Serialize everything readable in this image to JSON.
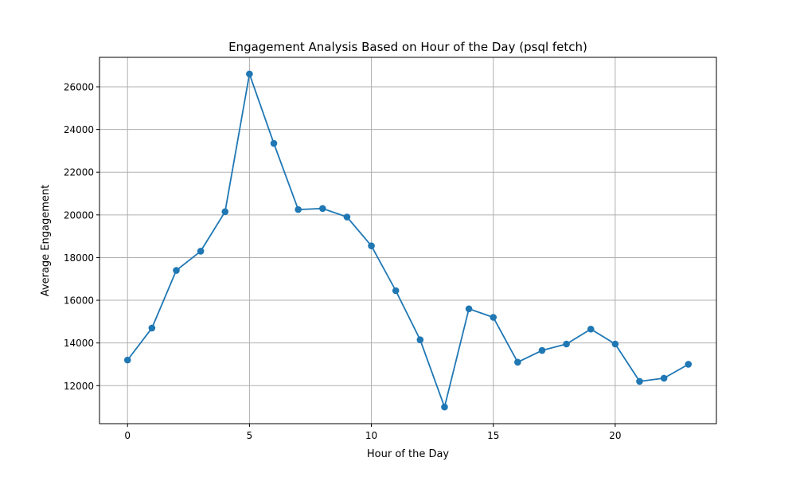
{
  "chart_data": {
    "type": "line",
    "title": "Engagement Analysis Based on Hour of the Day (psql fetch)",
    "xlabel": "Hour of the Day",
    "ylabel": "Average Engagement",
    "x": [
      0,
      1,
      2,
      3,
      4,
      5,
      6,
      7,
      8,
      9,
      10,
      11,
      12,
      13,
      14,
      15,
      16,
      17,
      18,
      19,
      20,
      21,
      22,
      23
    ],
    "series": [
      {
        "values": [
          13200,
          14700,
          17400,
          18300,
          20150,
          26600,
          23350,
          20250,
          20300,
          19900,
          18550,
          16450,
          14150,
          11000,
          15600,
          15200,
          13100,
          13650,
          13950,
          14650,
          13950,
          12200,
          12350,
          13000
        ],
        "color": "#1f77b4",
        "marker": "circle"
      }
    ],
    "xlim": [
      -1.15,
      24.15
    ],
    "ylim": [
      10220,
      27380
    ],
    "xticks": [
      0,
      5,
      10,
      15,
      20
    ],
    "yticks": [
      12000,
      14000,
      16000,
      18000,
      20000,
      22000,
      24000,
      26000
    ],
    "xtick_labels": [
      "0",
      "5",
      "10",
      "15",
      "20"
    ],
    "ytick_labels": [
      "12000",
      "14000",
      "16000",
      "18000",
      "20000",
      "22000",
      "24000",
      "26000"
    ],
    "grid": true,
    "grid_color": "#b0b0b0",
    "legend": false
  }
}
